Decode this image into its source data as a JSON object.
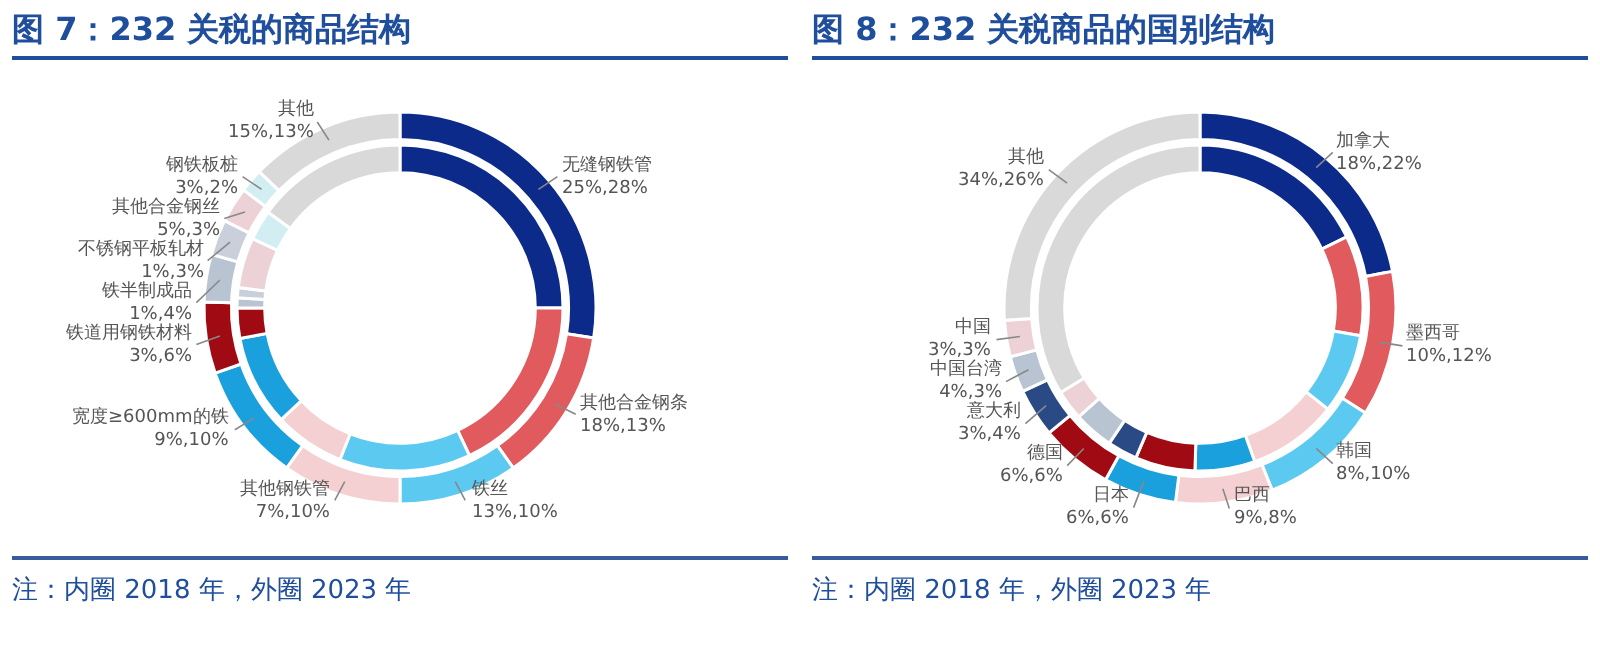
{
  "chart_data": [
    {
      "type": "donut",
      "title": "图 7：232 关税的商品结构",
      "categories": [
        "无缝钢铁管",
        "其他合金钢条",
        "铁丝",
        "其他钢铁管",
        "宽度≥600mm的铁",
        "铁道用钢铁材料",
        "铁半制成品",
        "不锈钢平板轧材",
        "其他合金钢丝",
        "钢铁板桩",
        "其他"
      ],
      "colors": [
        "#0b2a8a",
        "#e05a5e",
        "#5ccaf0",
        "#f4d0d2",
        "#1aa0dc",
        "#a00a12",
        "#b9c4d2",
        "#c9d0dc",
        "#ecd2d6",
        "#d3eef2",
        "#d9d9d9"
      ],
      "series": [
        {
          "values": [
            28,
            13,
            10,
            10,
            10,
            6,
            4,
            3,
            3,
            2,
            13
          ],
          "value_labels": [
            "28%",
            "13%",
            "10%",
            "10%",
            "10%",
            "6%",
            "4%",
            "3%",
            "3%",
            "2%",
            "13%"
          ]
        },
        {
          "values": [
            25,
            18,
            13,
            7,
            9,
            3,
            1,
            1,
            5,
            3,
            15
          ],
          "value_labels": [
            "25%,",
            "18%,",
            "13%,",
            "7%,",
            "9%,",
            "3%,",
            "1%,",
            "1%,",
            "5%,",
            "3%,",
            "15%,"
          ]
        }
      ],
      "annotations": [
        "注：内圈 2018 年，外圈 2023 年"
      ]
    },
    {
      "type": "donut",
      "title": "图 8：232 关税商品的国别结构",
      "categories": [
        "加拿大",
        "墨西哥",
        "韩国",
        "巴西",
        "日本",
        "德国",
        "意大利",
        "中国台湾",
        "中国",
        "其他"
      ],
      "colors": [
        "#0b2a8a",
        "#e05a5e",
        "#5ccaf0",
        "#f4d0d2",
        "#1aa0dc",
        "#a00a12",
        "#2a4a86",
        "#b9c4d2",
        "#ecd2d6",
        "#d9d9d9"
      ],
      "series": [
        {
          "values": [
            22,
            12,
            10,
            8,
            6,
            6,
            4,
            3,
            3,
            26
          ],
          "value_labels": [
            "22%",
            "12%",
            "10%",
            "8%",
            "6%",
            "6%",
            "4%",
            "3%",
            "3%",
            "26%"
          ]
        },
        {
          "values": [
            18,
            10,
            8,
            9,
            6,
            6,
            3,
            4,
            3,
            34
          ],
          "value_labels": [
            "18%,",
            "10%,",
            "8%,",
            "9%,",
            "6%,",
            "6%,",
            "3%,",
            "4%,",
            "3%,",
            "34%,"
          ]
        }
      ],
      "annotations": [
        "注：内圈 2018 年，外圈 2023 年"
      ]
    }
  ]
}
